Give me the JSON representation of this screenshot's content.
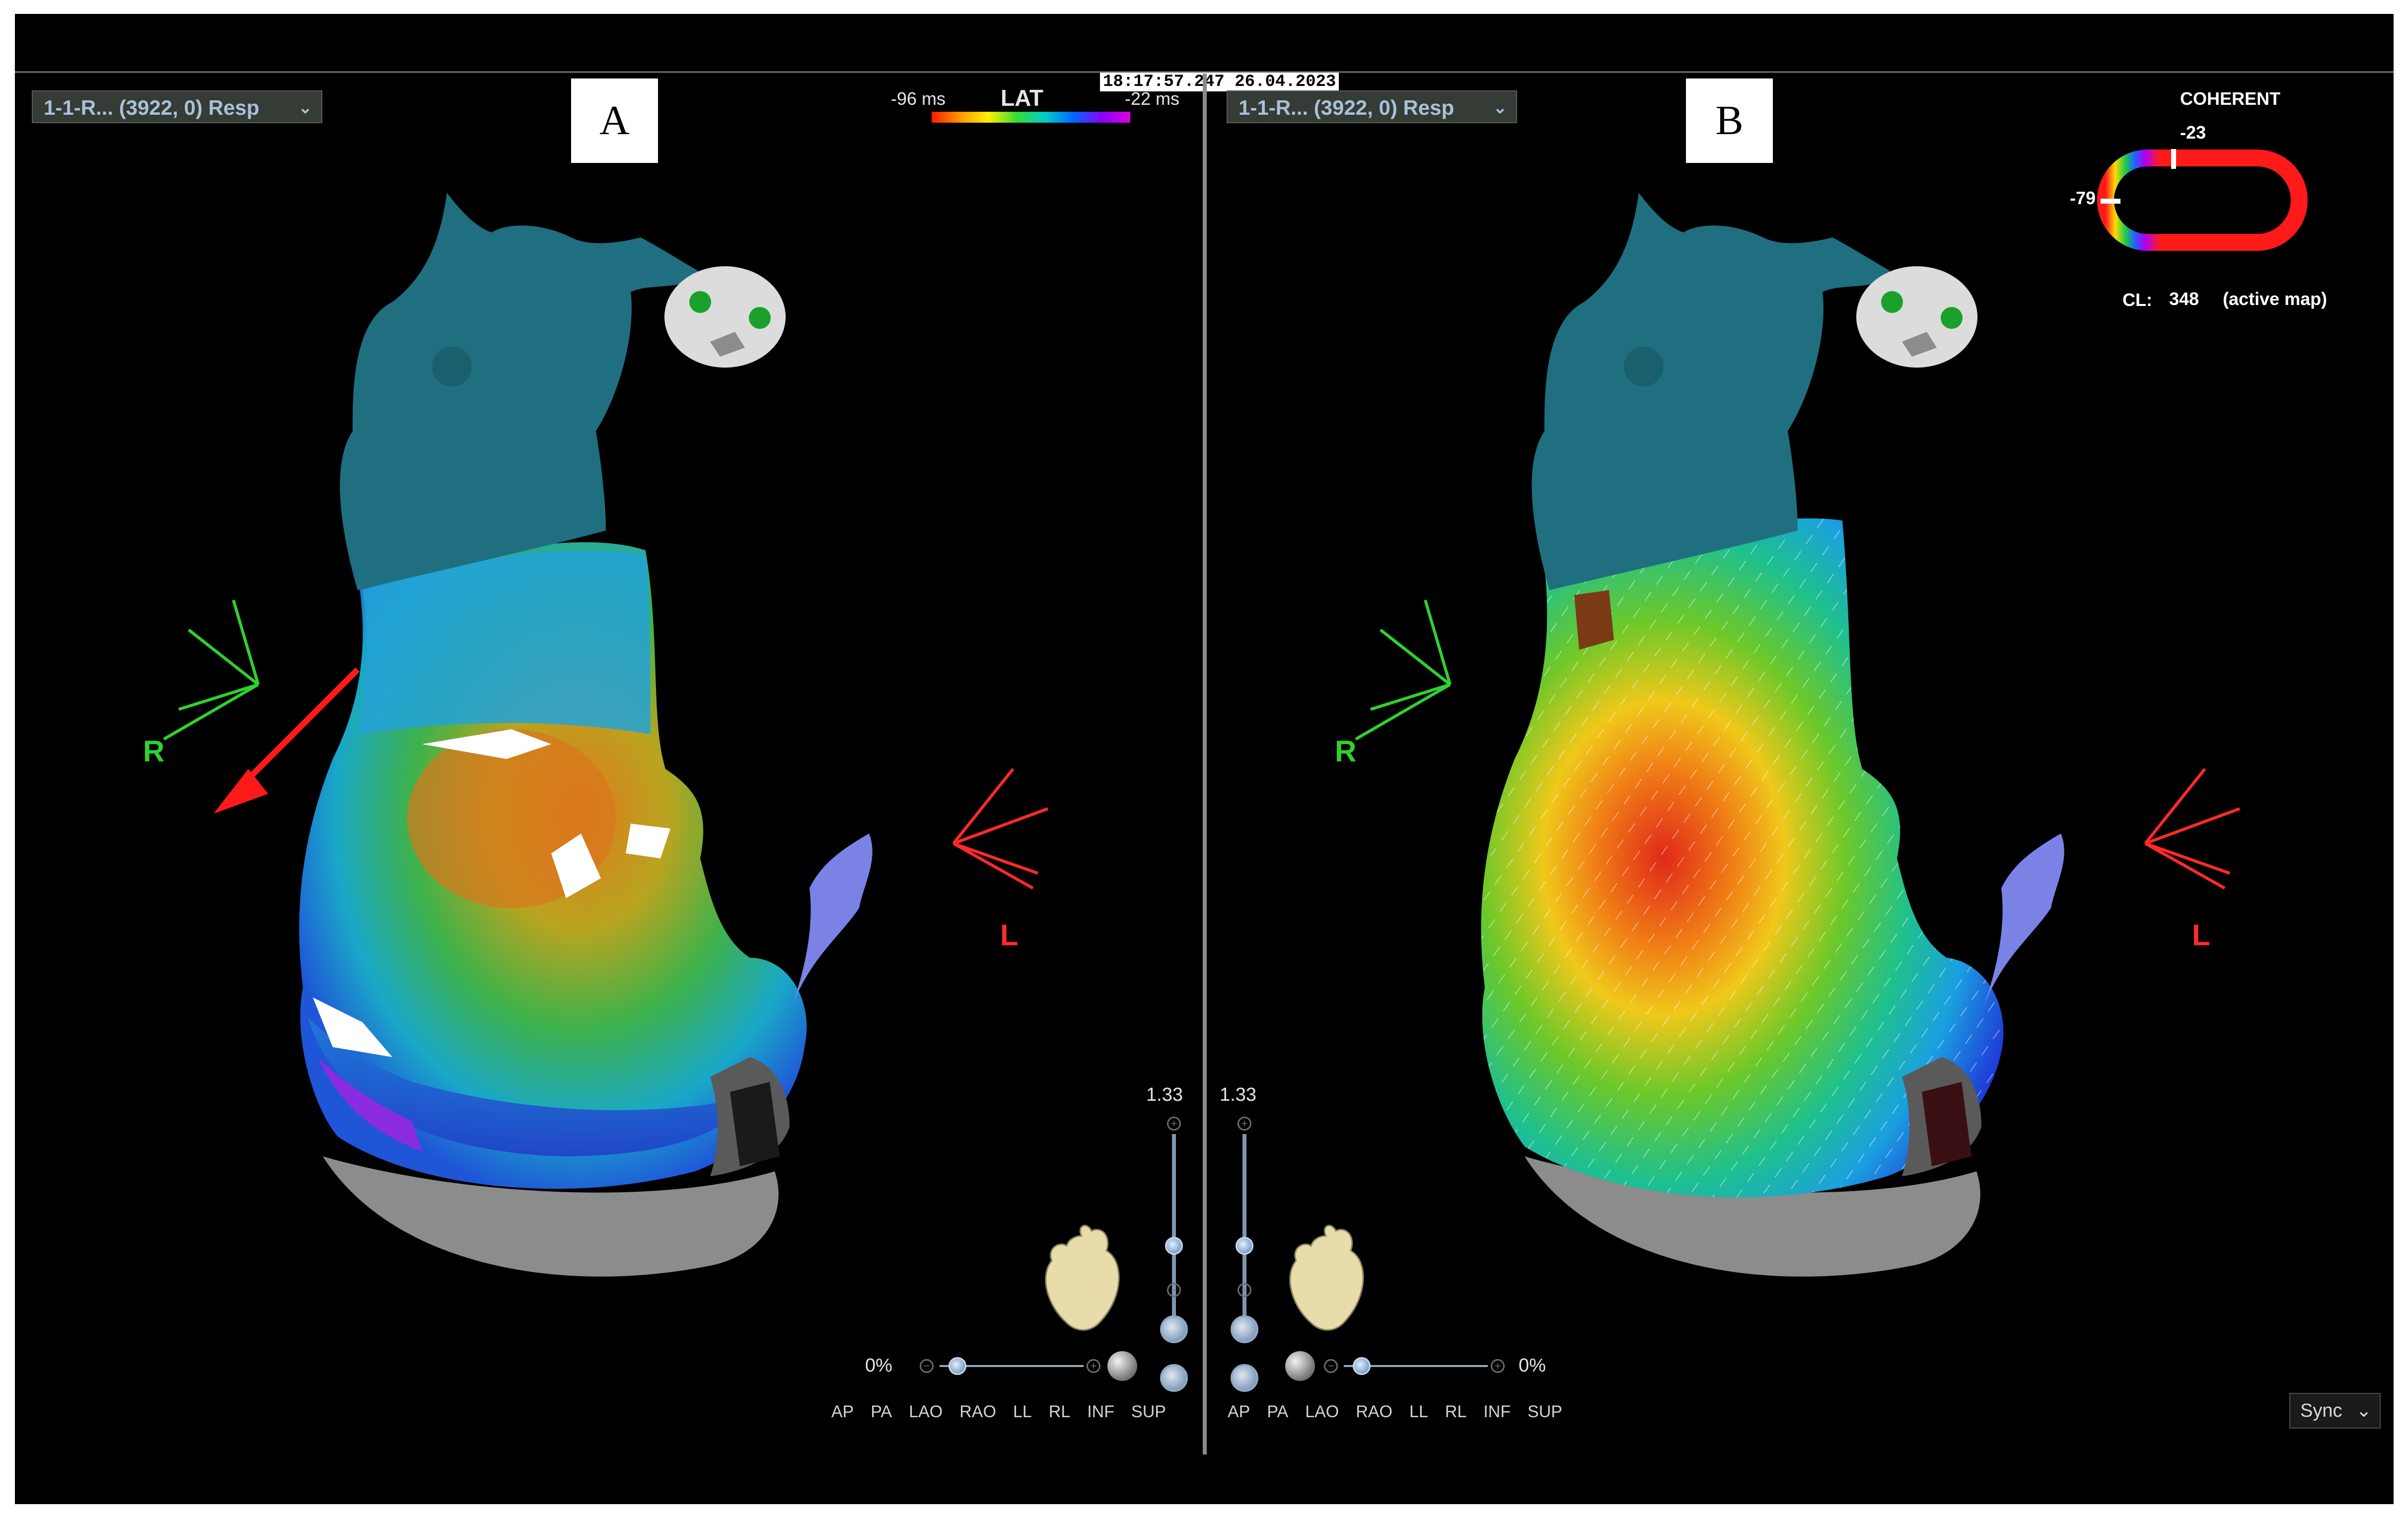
{
  "timestamp": "18:17:57.247  26.04.2023",
  "left_pane": {
    "panel_label": "A",
    "map_select": "1-1-R... (3922, 0) Resp",
    "lat_bar": {
      "min_label": "-96 ms",
      "title": "LAT",
      "max_label": "-22 ms"
    },
    "orientation_left": "R",
    "orientation_right": "L",
    "zoom": "1.33",
    "opacity": "0%"
  },
  "right_pane": {
    "panel_label": "B",
    "map_select": "1-1-R... (3922, 0) Resp",
    "coherent": {
      "title": "COHERENT",
      "top_value": "-23",
      "left_value": "-79"
    },
    "cycle_length": {
      "label": "CL:",
      "value": "348",
      "note": "(active map)"
    },
    "orientation_left": "R",
    "orientation_right": "L",
    "zoom": "1.33",
    "opacity": "0%",
    "sync": "Sync"
  },
  "view_buttons": [
    "AP",
    "PA",
    "LAO",
    "RAO",
    "LL",
    "RL",
    "INF",
    "SUP"
  ],
  "colors": {
    "screen_bg": "#000000",
    "vessel": "#1f6f80",
    "green_axis": "#2fd12f",
    "red_axis": "#ff2a2a"
  },
  "icons": [
    "dropdown-caret-icon",
    "head-orientation-icon",
    "heart-model-icon",
    "zoom-plus-icon",
    "zoom-minus-icon",
    "heart-view-icon",
    "sphere-icon",
    "chevron-down-icon"
  ]
}
